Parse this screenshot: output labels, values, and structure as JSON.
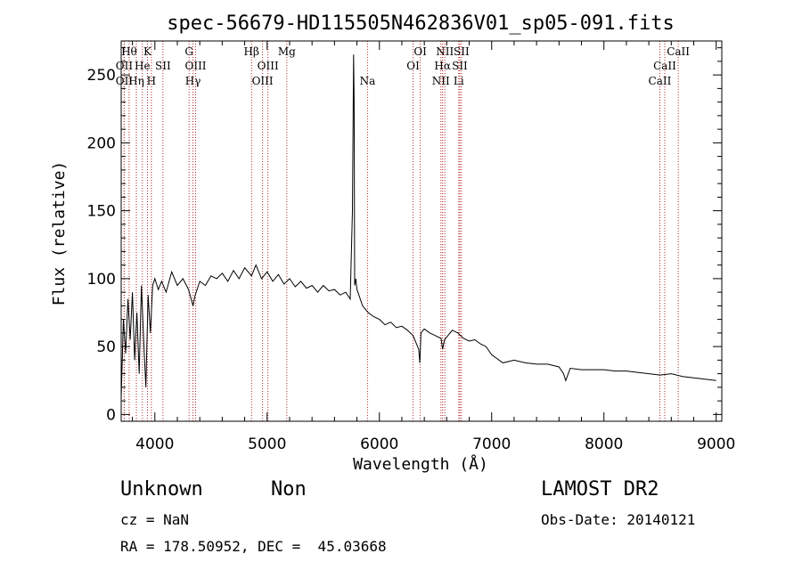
{
  "chart_data": {
    "type": "line",
    "title": "spec-56679-HD115505N462836V01_sp05-091.fits",
    "xlabel": "Wavelength (Å)",
    "ylabel": "Flux (relative)",
    "xlim": [
      3700,
      9050
    ],
    "ylim": [
      -5,
      275
    ],
    "xticks": [
      4000,
      5000,
      6000,
      7000,
      8000,
      9000
    ],
    "yticks": [
      0,
      50,
      100,
      150,
      200,
      250
    ],
    "grid": false,
    "series": [
      {
        "color": "#000000",
        "x": [
          3700,
          3720,
          3740,
          3760,
          3780,
          3800,
          3820,
          3840,
          3860,
          3880,
          3900,
          3920,
          3940,
          3960,
          3980,
          4000,
          4030,
          4060,
          4100,
          4150,
          4200,
          4250,
          4300,
          4340,
          4360,
          4400,
          4450,
          4500,
          4550,
          4600,
          4650,
          4700,
          4750,
          4800,
          4861,
          4900,
          4950,
          5000,
          5050,
          5100,
          5150,
          5200,
          5250,
          5300,
          5350,
          5400,
          5450,
          5500,
          5550,
          5600,
          5650,
          5700,
          5740,
          5760,
          5770,
          5775,
          5780,
          5790,
          5800,
          5850,
          5900,
          5950,
          6000,
          6050,
          6100,
          6150,
          6200,
          6250,
          6300,
          6350,
          6360,
          6370,
          6400,
          6450,
          6500,
          6550,
          6563,
          6580,
          6600,
          6650,
          6700,
          6750,
          6800,
          6850,
          6900,
          6950,
          7000,
          7100,
          7200,
          7300,
          7400,
          7500,
          7600,
          7640,
          7660,
          7700,
          7800,
          7900,
          8000,
          8100,
          8200,
          8300,
          8400,
          8500,
          8600,
          8700,
          8800,
          8900,
          9000
        ],
        "y": [
          12,
          70,
          45,
          85,
          55,
          90,
          40,
          75,
          30,
          95,
          55,
          20,
          88,
          60,
          95,
          100,
          92,
          98,
          90,
          105,
          95,
          100,
          92,
          80,
          88,
          98,
          95,
          102,
          100,
          104,
          98,
          106,
          100,
          108,
          102,
          110,
          100,
          105,
          98,
          103,
          96,
          100,
          94,
          98,
          93,
          95,
          90,
          95,
          91,
          92,
          88,
          90,
          85,
          150,
          265,
          230,
          95,
          100,
          92,
          80,
          75,
          72,
          70,
          66,
          68,
          64,
          65,
          62,
          58,
          48,
          38,
          60,
          63,
          60,
          58,
          56,
          48,
          55,
          57,
          62,
          60,
          56,
          54,
          55,
          52,
          50,
          44,
          38,
          40,
          38,
          37,
          37,
          35,
          30,
          25,
          34,
          33,
          33,
          33,
          32,
          32,
          31,
          30,
          29,
          30,
          28,
          27,
          26,
          25
        ]
      }
    ],
    "lines": [
      {
        "x": 3771,
        "labels": [
          "Hθ"
        ],
        "row": 0
      },
      {
        "x": 3727,
        "labels": [
          "OII"
        ],
        "row": 1
      },
      {
        "x": 3727,
        "labels": [
          "OII"
        ],
        "row": 2
      },
      {
        "x": 3835,
        "labels": [
          "Hη"
        ],
        "row": 2
      },
      {
        "x": 3889,
        "labels": [
          "He"
        ],
        "row": 1
      },
      {
        "x": 3934,
        "labels": [
          "K"
        ],
        "row": 0
      },
      {
        "x": 3969,
        "labels": [
          "H"
        ],
        "row": 2
      },
      {
        "x": 4072,
        "labels": [
          "SII"
        ],
        "row": 1
      },
      {
        "x": 4305,
        "labels": [
          "G"
        ],
        "row": 0
      },
      {
        "x": 4340,
        "labels": [
          "Hγ"
        ],
        "row": 2
      },
      {
        "x": 4363,
        "labels": [
          "OIII"
        ],
        "row": 1
      },
      {
        "x": 4861,
        "labels": [
          "Hβ"
        ],
        "row": 0
      },
      {
        "x": 4959,
        "labels": [
          "OIII"
        ],
        "row": 2
      },
      {
        "x": 5007,
        "labels": [
          "OIII"
        ],
        "row": 1
      },
      {
        "x": 5175,
        "labels": [
          "Mg"
        ],
        "row": 0
      },
      {
        "x": 5894,
        "labels": [
          "Na"
        ],
        "row": 2
      },
      {
        "x": 6300,
        "labels": [
          "OI"
        ],
        "row": 1
      },
      {
        "x": 6364,
        "labels": [
          "OI"
        ],
        "row": 0
      },
      {
        "x": 6548,
        "labels": [
          "NII"
        ],
        "row": 2
      },
      {
        "x": 6563,
        "labels": [
          "Hα"
        ],
        "row": 1
      },
      {
        "x": 6583,
        "labels": [
          "NII"
        ],
        "row": 0
      },
      {
        "x": 6707,
        "labels": [
          "Li"
        ],
        "row": 2
      },
      {
        "x": 6716,
        "labels": [
          "SII"
        ],
        "row": 1
      },
      {
        "x": 6731,
        "labels": [
          "SII"
        ],
        "row": 0
      },
      {
        "x": 8498,
        "labels": [
          "CaII"
        ],
        "row": 2
      },
      {
        "x": 8542,
        "labels": [
          "CaII"
        ],
        "row": 1
      },
      {
        "x": 8662,
        "labels": [
          "CaII"
        ],
        "row": 0
      }
    ]
  },
  "info": {
    "class": "Unknown",
    "subclass": "Non",
    "survey": "LAMOST DR2",
    "cz": "cz = NaN",
    "obsdate": "Obs-Date: 20140121",
    "radec": "RA = 178.50952, DEC =  45.03668"
  },
  "colors": {
    "spectrum": "#000000",
    "line_markers": "#b22222",
    "axes": "#000000"
  }
}
